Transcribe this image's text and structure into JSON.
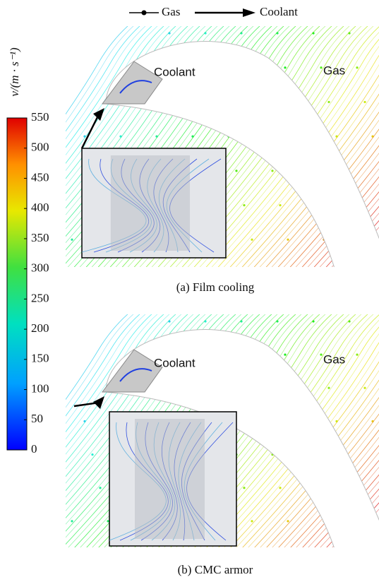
{
  "legend": {
    "items": [
      "Gas",
      "Coolant"
    ]
  },
  "colorbar": {
    "label": "v/(m · s⁻¹)",
    "lim": [
      0,
      550
    ],
    "ticks": [
      0,
      50,
      100,
      150,
      200,
      250,
      300,
      350,
      400,
      450,
      500,
      550
    ]
  },
  "panels": [
    {
      "caption": "(a) Film cooling",
      "labels": [
        "Coolant",
        "Gas"
      ]
    },
    {
      "caption": "(b) CMC armor",
      "labels": [
        "Coolant",
        "Gas"
      ]
    }
  ]
}
